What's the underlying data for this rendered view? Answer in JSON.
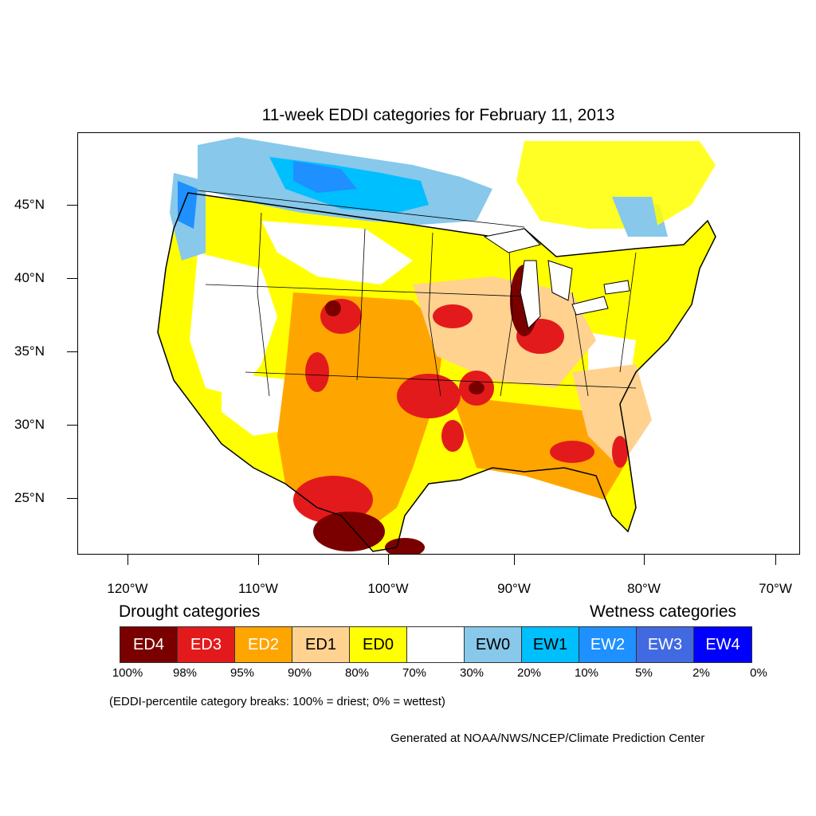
{
  "title": "11-week EDDI categories for February 11, 2013",
  "lat_labels": [
    "45°N",
    "40°N",
    "35°N",
    "30°N",
    "25°N"
  ],
  "lon_labels": [
    "120°W",
    "110°W",
    "100°W",
    "90°W",
    "80°W",
    "70°W"
  ],
  "legend": {
    "drought_heading": "Drought categories",
    "wetness_heading": "Wetness categories",
    "categories": [
      {
        "label": "ED4",
        "color": "#7a0000",
        "text_color": "#ffffff"
      },
      {
        "label": "ED3",
        "color": "#e31a1c",
        "text_color": "#ffffff"
      },
      {
        "label": "ED2",
        "color": "#ffa500",
        "text_color": "#ffffff"
      },
      {
        "label": "ED1",
        "color": "#ffd28f",
        "text_color": "#000000"
      },
      {
        "label": "ED0",
        "color": "#ffff00",
        "text_color": "#000000"
      },
      {
        "label": "",
        "color": "#ffffff",
        "text_color": "#000000"
      },
      {
        "label": "EW0",
        "color": "#87c8eb",
        "text_color": "#000000"
      },
      {
        "label": "EW1",
        "color": "#00bfff",
        "text_color": "#000000"
      },
      {
        "label": "EW2",
        "color": "#1e90ff",
        "text_color": "#ffffff"
      },
      {
        "label": "EW3",
        "color": "#4169e1",
        "text_color": "#ffffff"
      },
      {
        "label": "EW4",
        "color": "#0000ff",
        "text_color": "#ffffff"
      }
    ],
    "percentiles": [
      "100%",
      "98%",
      "95%",
      "90%",
      "80%",
      "70%",
      "30%",
      "20%",
      "10%",
      "5%",
      "2%",
      "0%"
    ]
  },
  "note": "(EDDI-percentile category breaks: 100% = driest; 0% = wettest)",
  "credit": "Generated at NOAA/NWS/NCEP/Climate Prediction Center"
}
